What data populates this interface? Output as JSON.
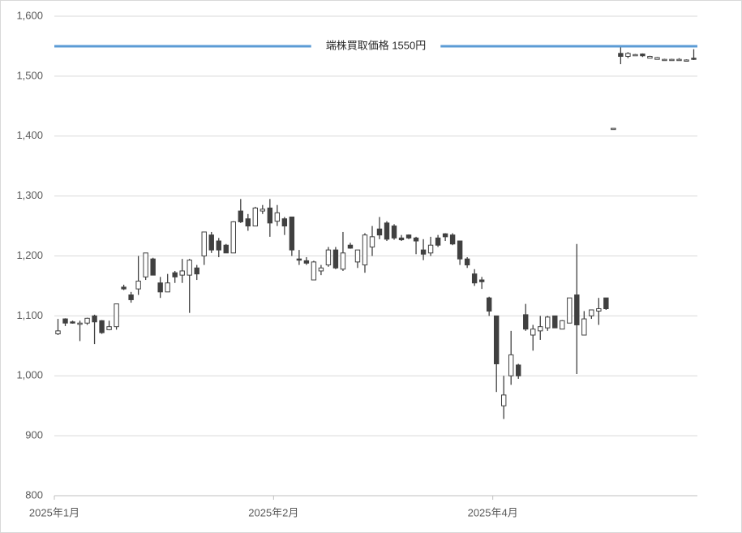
{
  "chart_data": {
    "type": "candlestick",
    "categories": [
      "2025年1月",
      null,
      null,
      null,
      null,
      null,
      null,
      null,
      null,
      null,
      null,
      null,
      null,
      null,
      null,
      null,
      null,
      null,
      null,
      null,
      null,
      null,
      null,
      null,
      null,
      null,
      null,
      null,
      null,
      null,
      "2025年2月",
      null,
      null,
      null,
      null,
      null,
      null,
      null,
      null,
      null,
      null,
      null,
      null,
      null,
      null,
      null,
      null,
      null,
      null,
      null,
      null,
      null,
      null,
      null,
      null,
      null,
      null,
      null,
      null,
      null,
      "2025年4月",
      null,
      null,
      null,
      null,
      null,
      null,
      null,
      null,
      null,
      null,
      null,
      null,
      null,
      null,
      null,
      null,
      null,
      null,
      null,
      null,
      null,
      null,
      null,
      null,
      null,
      null,
      null
    ],
    "open": [
      1070,
      1095,
      1090,
      1086,
      1088,
      1100,
      1092,
      1077,
      1082,
      1148,
      1135,
      1145,
      1165,
      1195,
      1155,
      1140,
      1172,
      1168,
      1168,
      1180,
      1200,
      1235,
      1225,
      1218,
      1205,
      1275,
      1262,
      1250,
      1275,
      1280,
      1258,
      1262,
      1265,
      1195,
      1192,
      1160,
      1175,
      1185,
      1210,
      1178,
      1218,
      1190,
      1185,
      1215,
      1245,
      1255,
      1250,
      1230,
      1235,
      1230,
      1210,
      1205,
      1230,
      1237,
      1235,
      1225,
      1195,
      1170,
      1160,
      1130,
      1100,
      950,
      1000,
      1018,
      1102,
      1068,
      1075,
      1080,
      1100,
      1078,
      1088,
      1135,
      1068,
      1100,
      1108,
      1130,
      1413,
      1538,
      1533,
      1536,
      1537,
      1530,
      1528,
      1528,
      1528,
      1528,
      1527,
      1530
    ],
    "high": [
      1095,
      1096,
      1092,
      1092,
      1097,
      1102,
      1093,
      1092,
      1120,
      1152,
      1140,
      1200,
      1205,
      1197,
      1165,
      1170,
      1175,
      1195,
      1195,
      1185,
      1240,
      1240,
      1230,
      1220,
      1258,
      1295,
      1270,
      1282,
      1285,
      1295,
      1285,
      1265,
      1265,
      1210,
      1198,
      1192,
      1185,
      1215,
      1215,
      1240,
      1222,
      1210,
      1238,
      1250,
      1265,
      1258,
      1253,
      1235,
      1236,
      1232,
      1228,
      1232,
      1235,
      1238,
      1238,
      1225,
      1198,
      1178,
      1165,
      1132,
      1100,
      1000,
      1075,
      1020,
      1120,
      1085,
      1100,
      1100,
      1100,
      1093,
      1130,
      1220,
      1108,
      1110,
      1130,
      1130,
      1413,
      1548,
      1540,
      1537,
      1538,
      1534,
      1532,
      1529,
      1529,
      1530,
      1528,
      1545
    ],
    "low": [
      1068,
      1083,
      1087,
      1058,
      1085,
      1053,
      1070,
      1076,
      1077,
      1143,
      1122,
      1135,
      1160,
      1168,
      1130,
      1140,
      1155,
      1155,
      1105,
      1160,
      1185,
      1205,
      1198,
      1205,
      1205,
      1255,
      1242,
      1250,
      1270,
      1232,
      1250,
      1235,
      1200,
      1185,
      1185,
      1160,
      1168,
      1182,
      1178,
      1175,
      1212,
      1180,
      1172,
      1200,
      1228,
      1225,
      1227,
      1225,
      1228,
      1203,
      1193,
      1200,
      1215,
      1225,
      1218,
      1185,
      1180,
      1150,
      1145,
      1100,
      973,
      928,
      985,
      995,
      1075,
      1042,
      1060,
      1075,
      1080,
      1078,
      1088,
      1003,
      1068,
      1095,
      1085,
      1110,
      1413,
      1520,
      1530,
      1535,
      1532,
      1530,
      1528,
      1527,
      1527,
      1526,
      1526,
      1527
    ],
    "close": [
      1075,
      1088,
      1088,
      1088,
      1096,
      1090,
      1072,
      1082,
      1120,
      1145,
      1127,
      1158,
      1205,
      1168,
      1140,
      1155,
      1165,
      1175,
      1193,
      1170,
      1240,
      1210,
      1210,
      1205,
      1257,
      1257,
      1250,
      1280,
      1278,
      1255,
      1272,
      1250,
      1210,
      1193,
      1188,
      1190,
      1180,
      1210,
      1180,
      1205,
      1213,
      1210,
      1235,
      1232,
      1235,
      1228,
      1230,
      1227,
      1230,
      1225,
      1203,
      1218,
      1218,
      1232,
      1220,
      1195,
      1185,
      1155,
      1157,
      1108,
      1020,
      968,
      1035,
      1000,
      1078,
      1078,
      1082,
      1098,
      1080,
      1092,
      1130,
      1085,
      1095,
      1110,
      1112,
      1112,
      1413,
      1533,
      1538,
      1536,
      1534,
      1533,
      1531,
      1528,
      1528,
      1528,
      1527,
      1528
    ],
    "up_color": "#ffffff",
    "down_color": "#404040",
    "reference_line": {
      "value": 1550,
      "label": "端株買取価格  1550円",
      "color": "#5b9bd5"
    },
    "ylim": [
      800,
      1600
    ],
    "yticks": [
      800,
      900,
      {
        "value": 1000,
        "label": "1,000"
      },
      {
        "value": 1100,
        "label": "1,100"
      },
      {
        "value": 1200,
        "label": "1,200"
      },
      {
        "value": 1300,
        "label": "1,300"
      },
      {
        "value": 1400,
        "label": "1,400"
      },
      {
        "value": 1500,
        "label": "1,500"
      },
      {
        "value": 1600,
        "label": "1,600"
      }
    ],
    "grid": true
  }
}
